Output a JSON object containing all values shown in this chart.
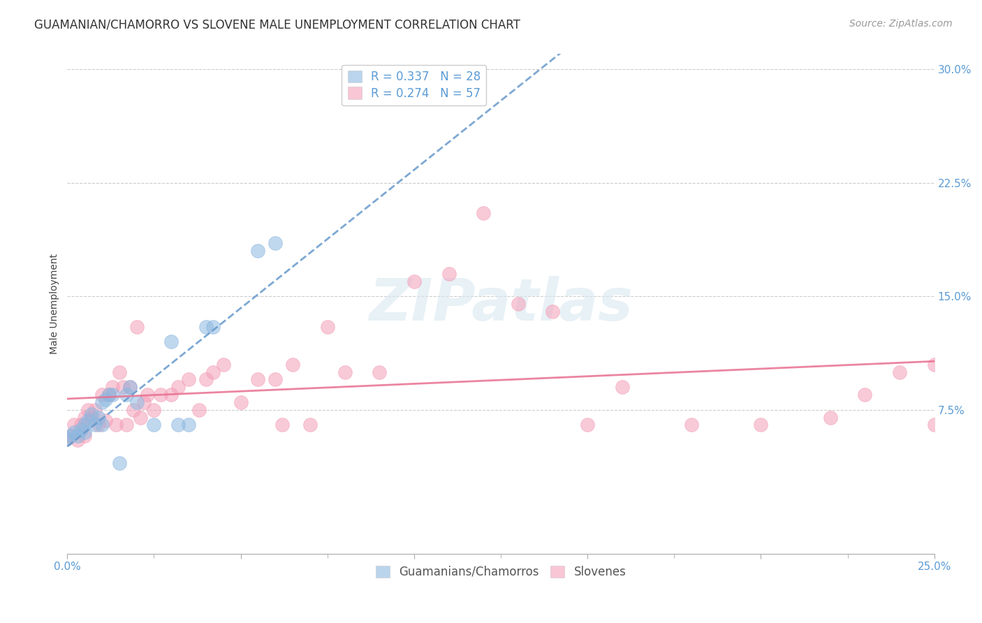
{
  "title": "GUAMANIAN/CHAMORRO VS SLOVENE MALE UNEMPLOYMENT CORRELATION CHART",
  "source": "Source: ZipAtlas.com",
  "ylabel": "Male Unemployment",
  "xlim": [
    0.0,
    0.25
  ],
  "ylim": [
    -0.02,
    0.31
  ],
  "xtick_positions": [
    0.0,
    0.05,
    0.1,
    0.15,
    0.2,
    0.25
  ],
  "xticklabels": [
    "0.0%",
    "",
    "",
    "",
    "",
    "25.0%"
  ],
  "ytick_positions": [
    0.075,
    0.15,
    0.225,
    0.3
  ],
  "yticklabels": [
    "7.5%",
    "15.0%",
    "22.5%",
    "30.0%"
  ],
  "watermark_text": "ZIPatlas",
  "legend_top": [
    {
      "label": "R = 0.337   N = 28",
      "color": "#8db8e0"
    },
    {
      "label": "R = 0.274   N = 57",
      "color": "#f4a0b8"
    }
  ],
  "legend_bottom": [
    {
      "label": "Guamanians/Chamorros",
      "color": "#8db8e0"
    },
    {
      "label": "Slovenes",
      "color": "#f4a0b8"
    }
  ],
  "guamanian_x": [
    0.0,
    0.001,
    0.002,
    0.003,
    0.004,
    0.005,
    0.005,
    0.006,
    0.007,
    0.008,
    0.009,
    0.01,
    0.01,
    0.011,
    0.012,
    0.013,
    0.015,
    0.017,
    0.018,
    0.02,
    0.025,
    0.03,
    0.032,
    0.035,
    0.04,
    0.042,
    0.055,
    0.06
  ],
  "guamanian_y": [
    0.056,
    0.058,
    0.06,
    0.058,
    0.062,
    0.06,
    0.065,
    0.068,
    0.072,
    0.065,
    0.07,
    0.065,
    0.08,
    0.082,
    0.085,
    0.085,
    0.04,
    0.085,
    0.09,
    0.08,
    0.065,
    0.12,
    0.065,
    0.065,
    0.13,
    0.13,
    0.18,
    0.185
  ],
  "slovene_x": [
    0.0,
    0.001,
    0.002,
    0.003,
    0.004,
    0.005,
    0.005,
    0.006,
    0.007,
    0.008,
    0.009,
    0.01,
    0.011,
    0.012,
    0.013,
    0.014,
    0.015,
    0.016,
    0.017,
    0.018,
    0.019,
    0.02,
    0.021,
    0.022,
    0.023,
    0.025,
    0.027,
    0.03,
    0.032,
    0.035,
    0.038,
    0.04,
    0.042,
    0.045,
    0.05,
    0.055,
    0.06,
    0.062,
    0.065,
    0.07,
    0.075,
    0.08,
    0.09,
    0.1,
    0.11,
    0.12,
    0.13,
    0.14,
    0.15,
    0.16,
    0.18,
    0.2,
    0.22,
    0.23,
    0.24,
    0.25,
    0.25
  ],
  "slovene_y": [
    0.056,
    0.058,
    0.065,
    0.055,
    0.065,
    0.07,
    0.058,
    0.075,
    0.07,
    0.075,
    0.065,
    0.085,
    0.068,
    0.085,
    0.09,
    0.065,
    0.1,
    0.09,
    0.065,
    0.09,
    0.075,
    0.13,
    0.07,
    0.08,
    0.085,
    0.075,
    0.085,
    0.085,
    0.09,
    0.095,
    0.075,
    0.095,
    0.1,
    0.105,
    0.08,
    0.095,
    0.095,
    0.065,
    0.105,
    0.065,
    0.13,
    0.1,
    0.1,
    0.16,
    0.165,
    0.205,
    0.145,
    0.14,
    0.065,
    0.09,
    0.065,
    0.065,
    0.07,
    0.085,
    0.1,
    0.065,
    0.105
  ],
  "guamanian_color": "#8db8e0",
  "slovene_color": "#f4a0b8",
  "blue_line_color": "#6699cc",
  "pink_line_color": "#e87090",
  "title_fontsize": 12,
  "axis_label_fontsize": 10,
  "tick_fontsize": 11,
  "legend_fontsize": 12,
  "source_fontsize": 10
}
